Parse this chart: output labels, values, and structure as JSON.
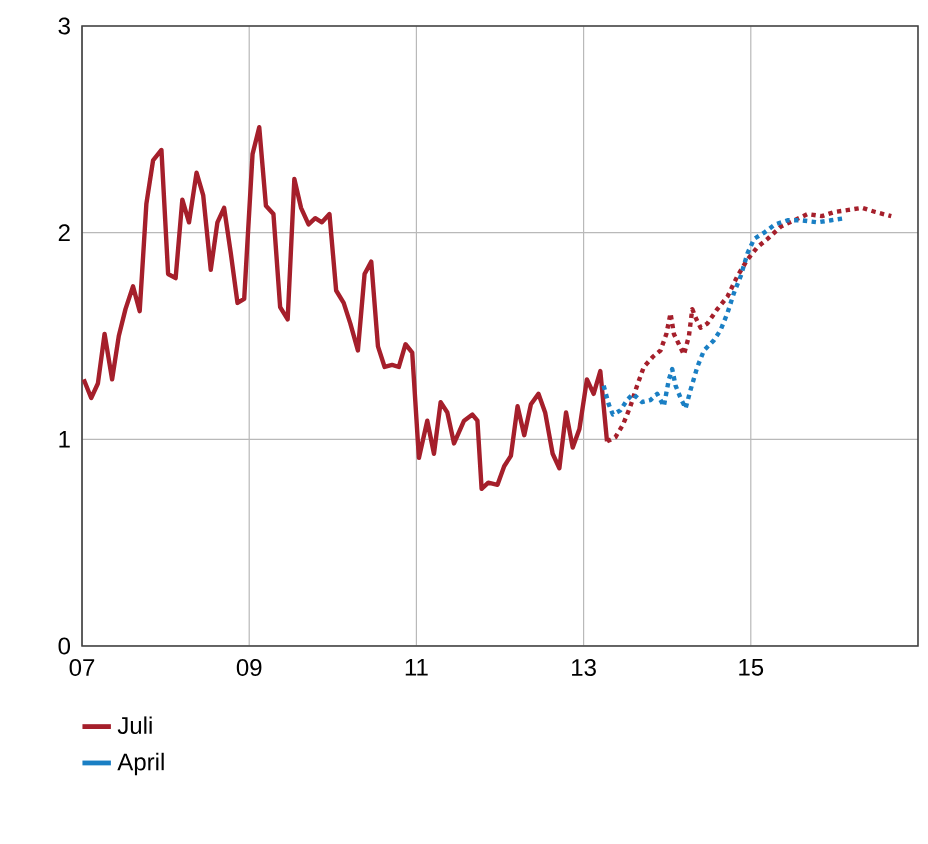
{
  "chart_data": {
    "type": "line",
    "xlim": [
      2007,
      2017
    ],
    "ylim": [
      0,
      3
    ],
    "xticks": [
      {
        "value": 2007,
        "label": "07"
      },
      {
        "value": 2009,
        "label": "09"
      },
      {
        "value": 2011,
        "label": "11"
      },
      {
        "value": 2013,
        "label": "13"
      },
      {
        "value": 2015,
        "label": "15"
      }
    ],
    "yticks": [
      0,
      1,
      2,
      3
    ],
    "grid": true,
    "legend": "bottom",
    "marker": "none",
    "series": [
      {
        "name": "Juli",
        "color": "#a51f2b",
        "line_style": "solid",
        "x": [
          2007.02,
          2007.11,
          2007.19,
          2007.27,
          2007.36,
          2007.44,
          2007.52,
          2007.61,
          2007.69,
          2007.77,
          2007.85,
          2007.95,
          2008.03,
          2008.12,
          2008.2,
          2008.28,
          2008.37,
          2008.45,
          2008.54,
          2008.62,
          2008.7,
          2008.78,
          2008.86,
          2008.94,
          2009.04,
          2009.12,
          2009.2,
          2009.29,
          2009.37,
          2009.46,
          2009.54,
          2009.62,
          2009.71,
          2009.79,
          2009.87,
          2009.96,
          2010.04,
          2010.13,
          2010.21,
          2010.3,
          2010.38,
          2010.46,
          2010.54,
          2010.62,
          2010.71,
          2010.79,
          2010.87,
          2010.95,
          2011.03,
          2011.13,
          2011.21,
          2011.29,
          2011.37,
          2011.45,
          2011.57,
          2011.67,
          2011.73,
          2011.78,
          2011.86,
          2011.97,
          2012.05,
          2012.13,
          2012.21,
          2012.29,
          2012.37,
          2012.46,
          2012.54,
          2012.63,
          2012.71,
          2012.79,
          2012.87,
          2012.95,
          2013.04,
          2013.12,
          2013.2,
          2013.28
        ],
        "values": [
          1.29,
          1.2,
          1.27,
          1.51,
          1.29,
          1.5,
          1.63,
          1.74,
          1.62,
          2.14,
          2.35,
          2.4,
          1.8,
          1.78,
          2.16,
          2.05,
          2.29,
          2.18,
          1.82,
          2.05,
          2.12,
          1.9,
          1.66,
          1.68,
          2.38,
          2.51,
          2.13,
          2.09,
          1.64,
          1.58,
          2.26,
          2.12,
          2.04,
          2.07,
          2.05,
          2.09,
          1.72,
          1.66,
          1.56,
          1.43,
          1.8,
          1.86,
          1.45,
          1.35,
          1.36,
          1.35,
          1.46,
          1.42,
          0.91,
          1.09,
          0.93,
          1.18,
          1.13,
          0.98,
          1.09,
          1.12,
          1.09,
          0.76,
          0.79,
          0.78,
          0.87,
          0.92,
          1.16,
          1.02,
          1.17,
          1.22,
          1.13,
          0.93,
          0.86,
          1.13,
          0.96,
          1.05,
          1.29,
          1.22,
          1.33,
          0.99
        ]
      },
      {
        "color": "#a51f2b",
        "line_style": "dotted",
        "x": [
          2013.28,
          2013.38,
          2013.47,
          2013.56,
          2013.64,
          2013.72,
          2013.83,
          2013.92,
          2013.99,
          2014.04,
          2014.08,
          2014.14,
          2014.2,
          2014.26,
          2014.3,
          2014.35,
          2014.4,
          2014.48,
          2014.6,
          2014.72,
          2014.84,
          2014.96,
          2015.08,
          2015.2,
          2015.36,
          2015.52,
          2015.68,
          2015.85,
          2016.0,
          2016.17,
          2016.33,
          2016.49,
          2016.68
        ],
        "values": [
          0.99,
          1.01,
          1.07,
          1.16,
          1.26,
          1.35,
          1.4,
          1.43,
          1.51,
          1.61,
          1.51,
          1.46,
          1.41,
          1.5,
          1.63,
          1.58,
          1.54,
          1.56,
          1.63,
          1.69,
          1.79,
          1.87,
          1.93,
          1.97,
          2.03,
          2.06,
          2.09,
          2.08,
          2.1,
          2.11,
          2.12,
          2.1,
          2.08
        ]
      },
      {
        "name": "April",
        "color": "#1a7fc4",
        "line_style": "dotted",
        "x": [
          2013.24,
          2013.3,
          2013.35,
          2013.44,
          2013.52,
          2013.59,
          2013.7,
          2013.8,
          2013.88,
          2013.96,
          2014.02,
          2014.06,
          2014.1,
          2014.16,
          2014.22,
          2014.28,
          2014.36,
          2014.44,
          2014.56,
          2014.64,
          2014.72,
          2014.8,
          2014.88,
          2014.96,
          2015.04,
          2015.16,
          2015.29,
          2015.44,
          2015.6,
          2015.8,
          2015.96,
          2016.12
        ],
        "values": [
          1.26,
          1.17,
          1.12,
          1.14,
          1.19,
          1.22,
          1.18,
          1.19,
          1.22,
          1.16,
          1.29,
          1.34,
          1.26,
          1.2,
          1.15,
          1.24,
          1.35,
          1.43,
          1.48,
          1.53,
          1.61,
          1.71,
          1.79,
          1.9,
          1.97,
          2.0,
          2.04,
          2.06,
          2.06,
          2.05,
          2.06,
          2.07
        ]
      }
    ]
  }
}
